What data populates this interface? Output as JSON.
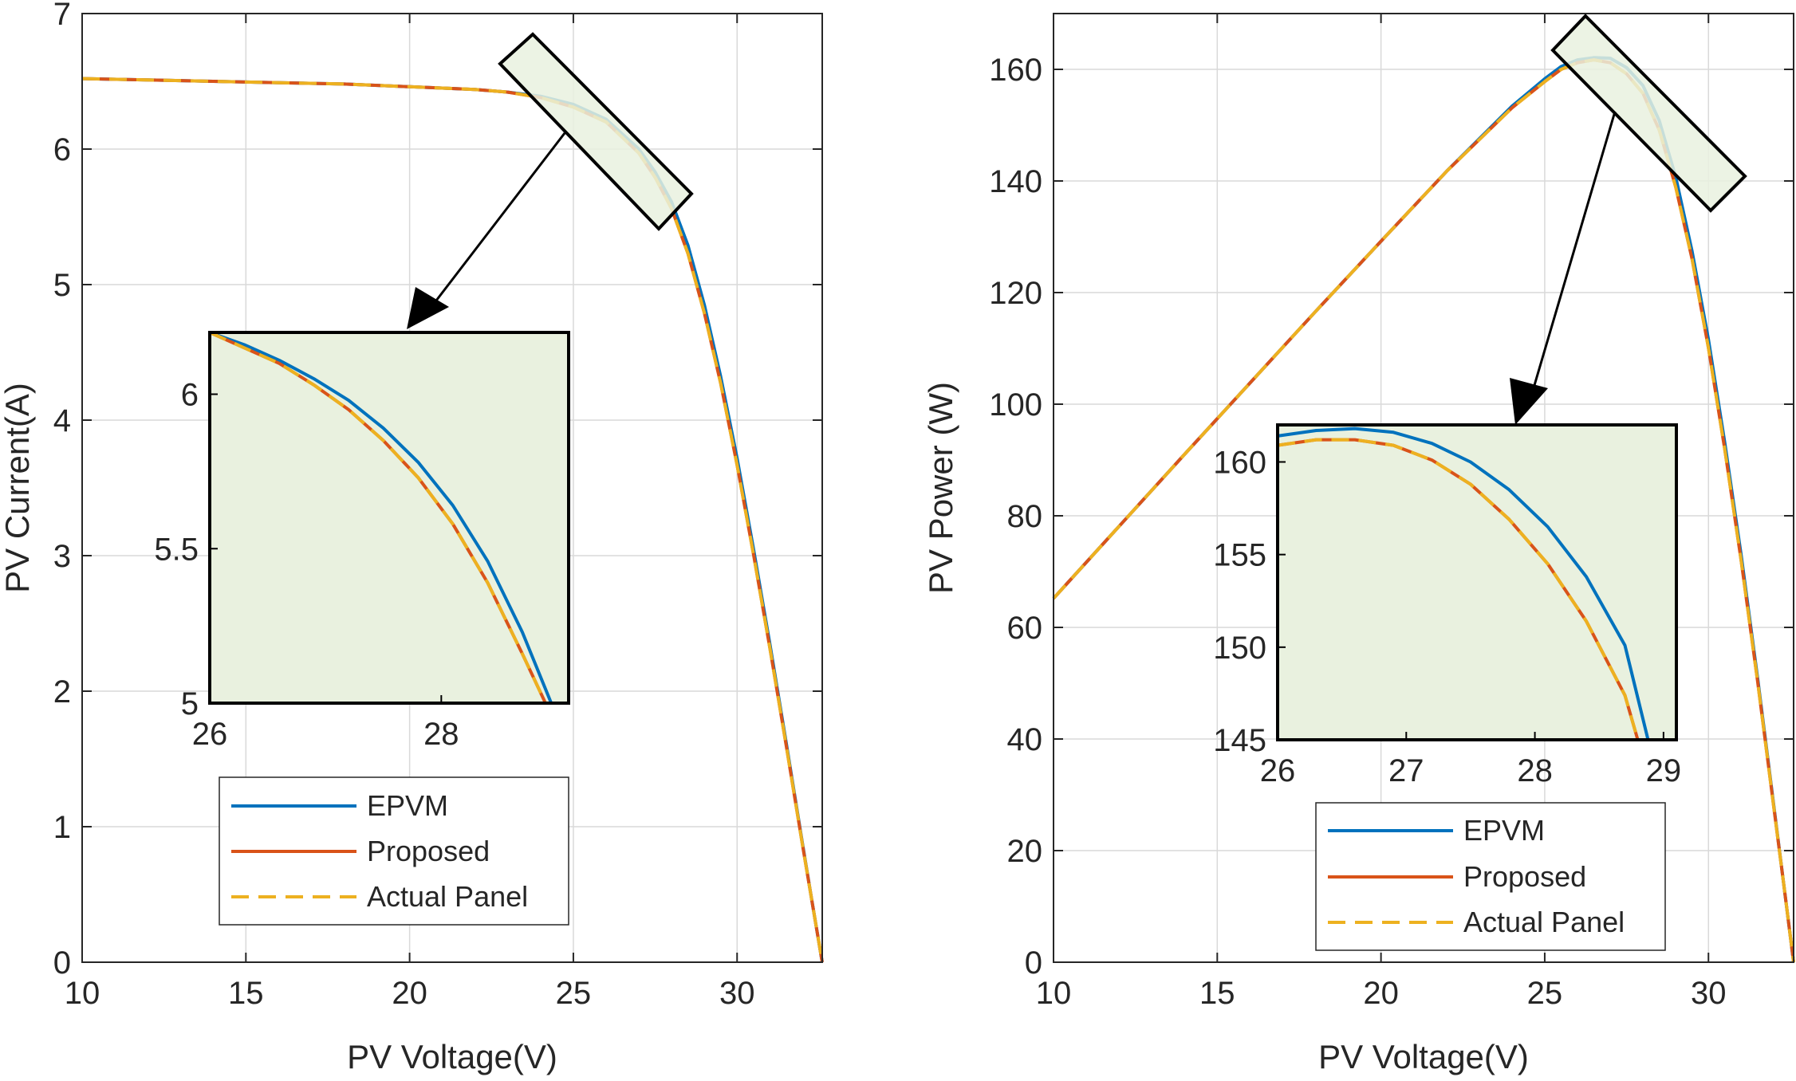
{
  "colors": {
    "epvm": "#0072BD",
    "proposed": "#D95319",
    "actual": "#EDB120",
    "zoom_fill": "#E9F1DF",
    "grid": "#D9D9D9",
    "axis": "#262626"
  },
  "chart_data": [
    {
      "type": "line",
      "title": "",
      "xlabel": "PV Voltage(V)",
      "ylabel": "PV Current(A)",
      "xlim": [
        10,
        32.6
      ],
      "ylim": [
        0,
        7
      ],
      "xticks": [
        10,
        15,
        20,
        25,
        30
      ],
      "yticks": [
        0,
        1,
        2,
        3,
        4,
        5,
        6,
        7
      ],
      "grid": true,
      "legend_position": "bottom-inset",
      "legend": [
        "EPVM",
        "Proposed",
        "Actual Panel"
      ],
      "series": [
        {
          "name": "EPVM",
          "x": [
            10,
            12,
            14,
            16,
            18,
            20,
            21,
            22,
            23,
            24,
            25,
            26,
            27,
            27.5,
            28,
            28.5,
            29,
            29.5,
            30,
            30.5,
            31,
            31.5,
            32,
            32.3,
            32.6
          ],
          "y": [
            6.52,
            6.51,
            6.5,
            6.49,
            6.48,
            6.46,
            6.45,
            6.44,
            6.42,
            6.39,
            6.33,
            6.22,
            6.0,
            5.83,
            5.61,
            5.29,
            4.85,
            4.32,
            3.72,
            3.05,
            2.35,
            1.62,
            0.87,
            0.43,
            0.0
          ]
        },
        {
          "name": "Proposed",
          "x": [
            10,
            12,
            14,
            16,
            18,
            20,
            21,
            22,
            23,
            24,
            25,
            26,
            27,
            27.5,
            28,
            28.5,
            29,
            29.5,
            30,
            30.5,
            31,
            31.5,
            32,
            32.3,
            32.6
          ],
          "y": [
            6.52,
            6.51,
            6.5,
            6.49,
            6.48,
            6.46,
            6.45,
            6.44,
            6.42,
            6.38,
            6.31,
            6.2,
            5.97,
            5.79,
            5.56,
            5.23,
            4.79,
            4.27,
            3.67,
            3.01,
            2.32,
            1.6,
            0.86,
            0.43,
            0.0
          ]
        },
        {
          "name": "Actual Panel",
          "x": [
            10,
            12,
            14,
            16,
            18,
            20,
            21,
            22,
            23,
            24,
            25,
            26,
            27,
            27.5,
            28,
            28.5,
            29,
            29.5,
            30,
            30.5,
            31,
            31.5,
            32,
            32.3,
            32.6
          ],
          "y": [
            6.52,
            6.51,
            6.5,
            6.49,
            6.48,
            6.46,
            6.45,
            6.44,
            6.42,
            6.38,
            6.31,
            6.2,
            5.97,
            5.79,
            5.56,
            5.23,
            4.79,
            4.27,
            3.67,
            3.01,
            2.32,
            1.6,
            0.86,
            0.43,
            0.0
          ]
        }
      ],
      "inset": {
        "xlim": [
          26,
          29.1
        ],
        "ylim": [
          5,
          6.2
        ],
        "xticks": [
          26,
          28
        ],
        "yticks": [
          5,
          5.5,
          6
        ],
        "ytick_labels": [
          "5",
          "5.5",
          "6"
        ],
        "series": [
          {
            "name": "EPVM",
            "x": [
              26.0,
              26.3,
              26.6,
              26.9,
              27.2,
              27.5,
              27.8,
              28.1,
              28.4,
              28.7,
              28.95
            ],
            "y": [
              6.2,
              6.16,
              6.11,
              6.05,
              5.98,
              5.89,
              5.78,
              5.64,
              5.46,
              5.23,
              5.0
            ]
          },
          {
            "name": "Proposed",
            "x": [
              26.0,
              26.3,
              26.6,
              26.9,
              27.2,
              27.5,
              27.8,
              28.1,
              28.4,
              28.7,
              28.9
            ],
            "y": [
              6.2,
              6.15,
              6.1,
              6.03,
              5.95,
              5.85,
              5.73,
              5.58,
              5.39,
              5.16,
              5.0
            ]
          },
          {
            "name": "Actual Panel",
            "x": [
              26.0,
              26.3,
              26.6,
              26.9,
              27.2,
              27.5,
              27.8,
              28.1,
              28.4,
              28.7,
              28.9
            ],
            "y": [
              6.2,
              6.15,
              6.1,
              6.03,
              5.95,
              5.85,
              5.73,
              5.58,
              5.39,
              5.16,
              5.0
            ]
          }
        ]
      }
    },
    {
      "type": "line",
      "title": "",
      "xlabel": "PV Voltage(V)",
      "ylabel": "PV Power (W)",
      "xlim": [
        10,
        32.6
      ],
      "ylim": [
        0,
        170
      ],
      "xticks": [
        10,
        15,
        20,
        25,
        30
      ],
      "yticks": [
        0,
        20,
        40,
        60,
        80,
        100,
        120,
        140,
        160
      ],
      "grid": true,
      "legend_position": "bottom-inset",
      "legend": [
        "EPVM",
        "Proposed",
        "Actual Panel"
      ],
      "series": [
        {
          "name": "EPVM",
          "x": [
            10,
            12,
            14,
            16,
            18,
            20,
            22,
            24,
            25,
            25.5,
            26,
            26.5,
            27,
            27.5,
            28,
            28.5,
            29,
            29.5,
            30,
            30.5,
            31,
            31.5,
            32,
            32.3,
            32.6
          ],
          "y": [
            65.2,
            78.1,
            91.0,
            103.8,
            116.6,
            129.2,
            141.7,
            153.4,
            158.3,
            160.5,
            161.7,
            162.1,
            162.0,
            160.3,
            157.1,
            150.8,
            140.7,
            127.4,
            111.6,
            93.0,
            72.9,
            51.0,
            27.8,
            13.9,
            0.0
          ]
        },
        {
          "name": "Proposed",
          "x": [
            10,
            12,
            14,
            16,
            18,
            20,
            22,
            24,
            25,
            25.5,
            26,
            26.5,
            27,
            27.5,
            28,
            28.5,
            29,
            29.5,
            30,
            30.5,
            31,
            31.5,
            32,
            32.3,
            32.6
          ],
          "y": [
            65.2,
            78.1,
            91.0,
            103.8,
            116.6,
            129.2,
            141.7,
            153.1,
            157.8,
            160.0,
            161.2,
            161.7,
            161.2,
            159.2,
            155.7,
            149.1,
            138.9,
            126.0,
            110.1,
            91.8,
            71.9,
            50.4,
            27.5,
            13.9,
            0.0
          ]
        },
        {
          "name": "Actual Panel",
          "x": [
            10,
            12,
            14,
            16,
            18,
            20,
            22,
            24,
            25,
            25.5,
            26,
            26.5,
            27,
            27.5,
            28,
            28.5,
            29,
            29.5,
            30,
            30.5,
            31,
            31.5,
            32,
            32.3,
            32.6
          ],
          "y": [
            65.2,
            78.1,
            91.0,
            103.8,
            116.6,
            129.2,
            141.7,
            153.1,
            157.8,
            160.0,
            161.2,
            161.7,
            161.2,
            159.2,
            155.7,
            149.1,
            138.9,
            126.0,
            110.1,
            91.8,
            71.9,
            50.4,
            27.5,
            13.9,
            0.0
          ]
        }
      ],
      "inset": {
        "xlim": [
          26,
          29.1
        ],
        "ylim": [
          145,
          162
        ],
        "xticks": [
          26,
          27,
          28,
          29
        ],
        "yticks": [
          145,
          150,
          155,
          160
        ],
        "ytick_labels": [
          "145",
          "150",
          "155",
          "160"
        ],
        "series": [
          {
            "name": "EPVM",
            "x": [
              26.0,
              26.3,
              26.6,
              26.9,
              27.2,
              27.5,
              27.8,
              28.1,
              28.4,
              28.7,
              28.88
            ],
            "y": [
              161.4,
              161.7,
              161.8,
              161.6,
              161.0,
              160.0,
              158.5,
              156.5,
              153.8,
              150.1,
              145.0
            ]
          },
          {
            "name": "Proposed",
            "x": [
              26.0,
              26.3,
              26.6,
              26.9,
              27.2,
              27.5,
              27.8,
              28.1,
              28.4,
              28.7,
              28.8
            ],
            "y": [
              160.9,
              161.2,
              161.2,
              160.9,
              160.1,
              158.8,
              156.9,
              154.5,
              151.4,
              147.4,
              145.0
            ]
          },
          {
            "name": "Actual Panel",
            "x": [
              26.0,
              26.3,
              26.6,
              26.9,
              27.2,
              27.5,
              27.8,
              28.1,
              28.4,
              28.7,
              28.8
            ],
            "y": [
              160.9,
              161.2,
              161.2,
              160.9,
              160.1,
              158.8,
              156.9,
              154.5,
              151.4,
              147.4,
              145.0
            ]
          }
        ]
      }
    }
  ]
}
